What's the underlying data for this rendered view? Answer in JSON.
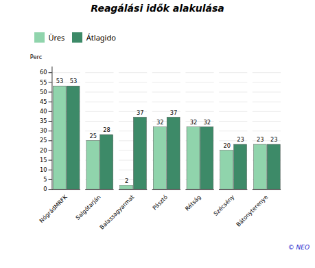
{
  "chart_data": {
    "type": "bar",
    "title": "Reagálási idők alakulása",
    "ylabel": "Perc",
    "categories": [
      "NógrádMRFK",
      "Salgótarján",
      "Balassagyarmat",
      "Pásztó",
      "Rétság",
      "Szécsény",
      "Bátonyterenye"
    ],
    "series": [
      {
        "name": "Üres",
        "color": "#90D4AC",
        "values": [
          53,
          25,
          2,
          32,
          32,
          20,
          23
        ]
      },
      {
        "name": "Átlagido",
        "color": "#3D8A68",
        "values": [
          53,
          28,
          37,
          37,
          32,
          23,
          23
        ]
      }
    ],
    "ylim": [
      0,
      63
    ],
    "yticks": [
      0,
      5,
      10,
      15,
      20,
      25,
      30,
      35,
      40,
      45,
      50,
      55,
      60
    ],
    "grid": true,
    "legend": "upper left",
    "data_labels": true,
    "annotations": [
      "© NEO"
    ]
  }
}
